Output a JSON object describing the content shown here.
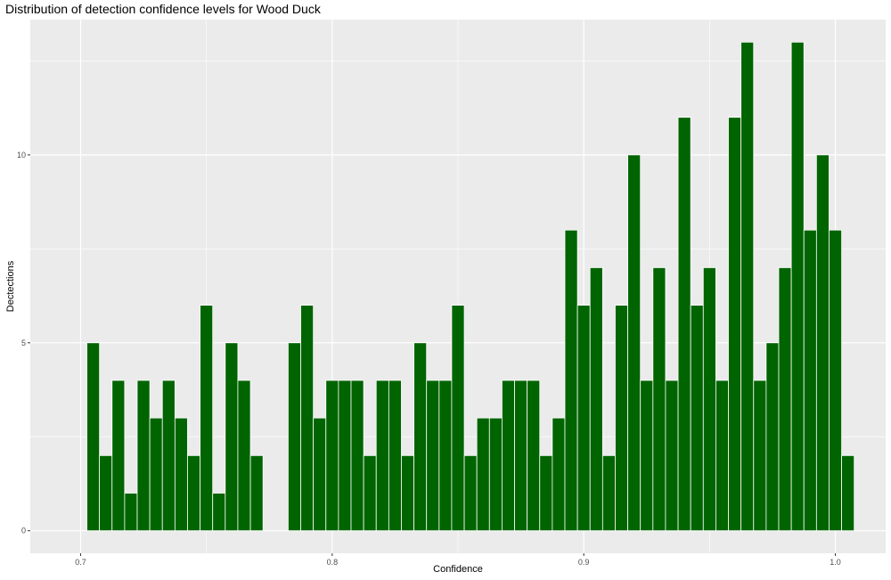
{
  "chart_data": {
    "type": "bar",
    "title": "Distribution of detection confidence levels for Wood Duck",
    "xlabel": "Confidence",
    "ylabel": "Dectections",
    "xlim": [
      0.68,
      1.02
    ],
    "ylim": [
      -0.6,
      13.6
    ],
    "x_ticks": [
      0.7,
      0.8,
      0.9,
      1.0
    ],
    "x_tick_labels": [
      "0.7",
      "0.8",
      "0.9",
      "1.0"
    ],
    "y_ticks": [
      0,
      5,
      10
    ],
    "y_tick_labels": [
      "0",
      "5",
      "10"
    ],
    "bin_width": 0.005,
    "bin_start": 0.7025,
    "values": [
      5,
      2,
      4,
      1,
      4,
      3,
      4,
      3,
      2,
      6,
      1,
      5,
      4,
      2,
      0,
      0,
      5,
      6,
      3,
      4,
      4,
      4,
      2,
      4,
      4,
      2,
      5,
      4,
      4,
      6,
      2,
      3,
      3,
      4,
      4,
      4,
      2,
      3,
      8,
      6,
      7,
      2,
      6,
      10,
      4,
      7,
      4,
      11,
      6,
      7,
      4,
      11,
      13,
      4,
      5,
      7,
      13,
      8,
      10,
      8,
      2
    ],
    "bar_color": "#006400",
    "panel_background": "#ebebeb",
    "grid": true,
    "legend": "none"
  }
}
